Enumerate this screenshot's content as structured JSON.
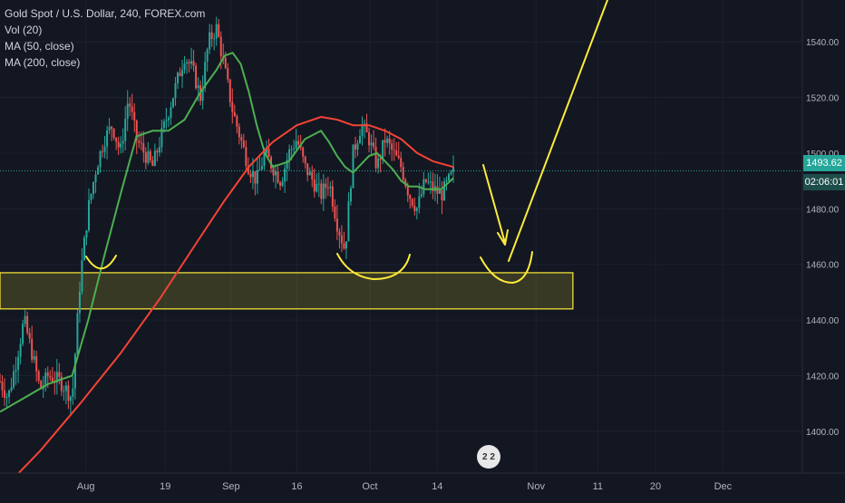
{
  "legend": {
    "title": "Gold Spot / U.S. Dollar, 240, FOREX.com",
    "vol": "Vol (20)",
    "ma50": "MA (50, close)",
    "ma200": "MA (200, close)"
  },
  "price_tag": "1493.62",
  "timer_tag": "02:06:01",
  "badge_text": "2 2",
  "colors": {
    "background": "#131722",
    "candle_up": "#26a69a",
    "candle_down": "#ef5350",
    "ma50": "#4caf50",
    "ma200": "#f44336",
    "annotation": "#ffeb3b",
    "price_line": "#26a69a",
    "axis_text": "#b2b5be"
  },
  "chart_data": {
    "type": "line",
    "title": "Gold Spot / U.S. Dollar, 240, FOREX.com",
    "ylim": [
      1385,
      1555
    ],
    "y_ticks": [
      1400,
      1420,
      1440,
      1460,
      1480,
      1500,
      1520,
      1540
    ],
    "x_ticks": [
      "Aug",
      "19",
      "Sep",
      "16",
      "Oct",
      "14",
      "Nov",
      "11",
      "20",
      "Dec"
    ],
    "current_price": 1493.62,
    "price_path": {
      "x": [
        0,
        0.01,
        0.02,
        0.03,
        0.04,
        0.05,
        0.06,
        0.075,
        0.09,
        0.1,
        0.11,
        0.12,
        0.13,
        0.14,
        0.15,
        0.16,
        0.17,
        0.18,
        0.19,
        0.2,
        0.21,
        0.22,
        0.23,
        0.24,
        0.25,
        0.26,
        0.27,
        0.28,
        0.29,
        0.3,
        0.31,
        0.32,
        0.33,
        0.34,
        0.35,
        0.36,
        0.37,
        0.38,
        0.39,
        0.4,
        0.41,
        0.42,
        0.43,
        0.44,
        0.45,
        0.46,
        0.47,
        0.48,
        0.49,
        0.5,
        0.51,
        0.52,
        0.53,
        0.54,
        0.55,
        0.565
      ],
      "y": [
        1418,
        1412,
        1425,
        1440,
        1428,
        1415,
        1420,
        1418,
        1412,
        1455,
        1480,
        1495,
        1505,
        1510,
        1500,
        1520,
        1505,
        1500,
        1495,
        1505,
        1515,
        1525,
        1535,
        1530,
        1520,
        1540,
        1545,
        1530,
        1515,
        1505,
        1495,
        1490,
        1500,
        1495,
        1490,
        1500,
        1505,
        1495,
        1490,
        1485,
        1490,
        1475,
        1465,
        1500,
        1510,
        1505,
        1495,
        1505,
        1500,
        1495,
        1485,
        1480,
        1490,
        1487,
        1485,
        1493
      ]
    },
    "series": [
      {
        "name": "MA (50, close)",
        "x": [
          0,
          0.03,
          0.06,
          0.09,
          0.11,
          0.13,
          0.15,
          0.17,
          0.19,
          0.21,
          0.23,
          0.25,
          0.27,
          0.28,
          0.29,
          0.3,
          0.31,
          0.32,
          0.33,
          0.34,
          0.36,
          0.38,
          0.4,
          0.41,
          0.42,
          0.43,
          0.44,
          0.45,
          0.46,
          0.47,
          0.48,
          0.49,
          0.5,
          0.51,
          0.52,
          0.53,
          0.55,
          0.565
        ],
        "y": [
          1407,
          1412,
          1417,
          1420,
          1440,
          1463,
          1485,
          1506,
          1508,
          1508,
          1512,
          1522,
          1530,
          1535,
          1536,
          1532,
          1522,
          1510,
          1500,
          1495,
          1497,
          1505,
          1508,
          1504,
          1499,
          1495,
          1493,
          1496,
          1499,
          1500,
          1497,
          1494,
          1490,
          1488,
          1488,
          1487,
          1487,
          1491
        ]
      },
      {
        "name": "MA (200, close)",
        "x": [
          0,
          0.05,
          0.1,
          0.15,
          0.2,
          0.25,
          0.28,
          0.31,
          0.34,
          0.37,
          0.4,
          0.42,
          0.44,
          0.46,
          0.48,
          0.5,
          0.52,
          0.54,
          0.565
        ],
        "y": [
          1378,
          1393,
          1410,
          1428,
          1448,
          1470,
          1483,
          1495,
          1504,
          1510,
          1513,
          1512,
          1510,
          1510,
          1508,
          1505,
          1500,
          1497,
          1495
        ]
      }
    ],
    "support_zone": [
      1444,
      1457
    ],
    "annotations": [
      {
        "type": "arc"
      },
      {
        "type": "arc"
      },
      {
        "type": "arc"
      },
      {
        "type": "arrow"
      },
      {
        "type": "arrow"
      }
    ]
  }
}
